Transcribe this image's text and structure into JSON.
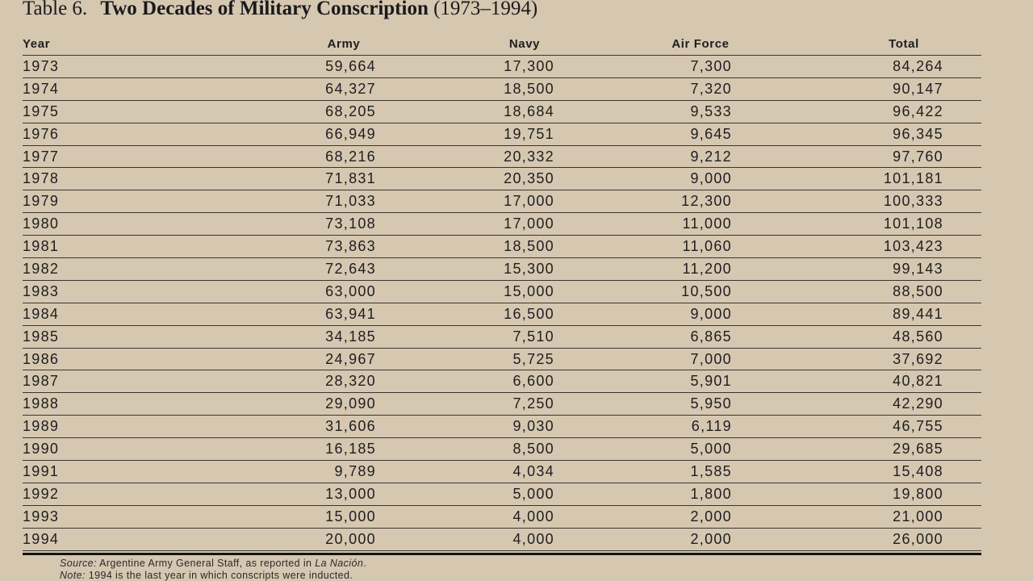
{
  "title": {
    "label": "Table 6.",
    "main": "Two Decades of Military Conscription",
    "range": "(1973–1994)"
  },
  "headers": {
    "year": "Year",
    "army": "Army",
    "navy": "Navy",
    "air_force": "Air Force",
    "total": "Total"
  },
  "rows": [
    {
      "year": "1973",
      "army": "59,664",
      "navy": "17,300",
      "air_force": "7,300",
      "total": "84,264"
    },
    {
      "year": "1974",
      "army": "64,327",
      "navy": "18,500",
      "air_force": "7,320",
      "total": "90,147"
    },
    {
      "year": "1975",
      "army": "68,205",
      "navy": "18,684",
      "air_force": "9,533",
      "total": "96,422"
    },
    {
      "year": "1976",
      "army": "66,949",
      "navy": "19,751",
      "air_force": "9,645",
      "total": "96,345"
    },
    {
      "year": "1977",
      "army": "68,216",
      "navy": "20,332",
      "air_force": "9,212",
      "total": "97,760"
    },
    {
      "year": "1978",
      "army": "71,831",
      "navy": "20,350",
      "air_force": "9,000",
      "total": "101,181"
    },
    {
      "year": "1979",
      "army": "71,033",
      "navy": "17,000",
      "air_force": "12,300",
      "total": "100,333"
    },
    {
      "year": "1980",
      "army": "73,108",
      "navy": "17,000",
      "air_force": "11,000",
      "total": "101,108"
    },
    {
      "year": "1981",
      "army": "73,863",
      "navy": "18,500",
      "air_force": "11,060",
      "total": "103,423"
    },
    {
      "year": "1982",
      "army": "72,643",
      "navy": "15,300",
      "air_force": "11,200",
      "total": "99,143"
    },
    {
      "year": "1983",
      "army": "63,000",
      "navy": "15,000",
      "air_force": "10,500",
      "total": "88,500"
    },
    {
      "year": "1984",
      "army": "63,941",
      "navy": "16,500",
      "air_force": "9,000",
      "total": "89,441"
    },
    {
      "year": "1985",
      "army": "34,185",
      "navy": "7,510",
      "air_force": "6,865",
      "total": "48,560"
    },
    {
      "year": "1986",
      "army": "24,967",
      "navy": "5,725",
      "air_force": "7,000",
      "total": "37,692"
    },
    {
      "year": "1987",
      "army": "28,320",
      "navy": "6,600",
      "air_force": "5,901",
      "total": "40,821"
    },
    {
      "year": "1988",
      "army": "29,090",
      "navy": "7,250",
      "air_force": "5,950",
      "total": "42,290"
    },
    {
      "year": "1989",
      "army": "31,606",
      "navy": "9,030",
      "air_force": "6,119",
      "total": "46,755"
    },
    {
      "year": "1990",
      "army": "16,185",
      "navy": "8,500",
      "air_force": "5,000",
      "total": "29,685"
    },
    {
      "year": "1991",
      "army": "9,789",
      "navy": "4,034",
      "air_force": "1,585",
      "total": "15,408"
    },
    {
      "year": "1992",
      "army": "13,000",
      "navy": "5,000",
      "air_force": "1,800",
      "total": "19,800"
    },
    {
      "year": "1993",
      "army": "15,000",
      "navy": "4,000",
      "air_force": "2,000",
      "total": "21,000"
    },
    {
      "year": "1994",
      "army": "20,000",
      "navy": "4,000",
      "air_force": "2,000",
      "total": "26,000"
    }
  ],
  "footnotes": {
    "source_label": "Source:",
    "source_text": "Argentine Army General Staff, as reported in",
    "source_publication": "La Nación",
    "source_end": ".",
    "note_label": "Note:",
    "note_text": "1994 is the last year in which conscripts were inducted."
  },
  "colors": {
    "background": "#d6c7b1",
    "text": "#1e1e1e",
    "rule": "#141414"
  }
}
